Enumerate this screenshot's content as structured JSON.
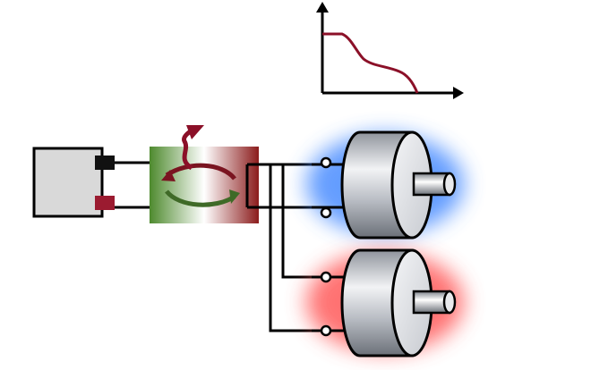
{
  "diagram": {
    "description_labels": [],
    "colors": {
      "battery_body": "#d9d9d9",
      "terminal_negative": "#111111",
      "terminal_positive": "#9b1b30",
      "controller_left": "#4e8a2e",
      "controller_right": "#8b1c1c",
      "arrow_heat": "#8b1028",
      "arrow_cycle_green": "#3f6a27",
      "arrow_cycle_red": "#7a1420",
      "graph_curve": "#8b1028",
      "motor_glow_top": "#4a8cff",
      "motor_glow_bottom": "#ff5a5a",
      "wire": "#000000"
    },
    "components": {
      "battery": "battery",
      "controller": "motor-controller",
      "motors": [
        "motor-top",
        "motor-bottom"
      ],
      "graph": "torque-speed-graph"
    }
  }
}
